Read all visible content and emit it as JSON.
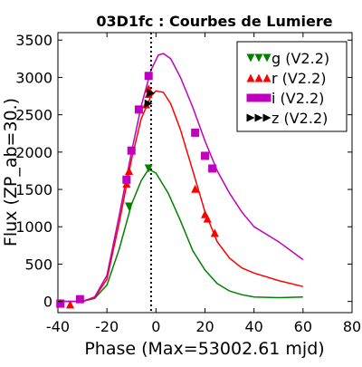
{
  "chart_data": {
    "type": "scatter",
    "title": "03D1fc : Courbes de Lumiere",
    "xlabel": "Phase (Max=53002.61 mjd)",
    "ylabel": "Flux (ZP_ab=30.)",
    "xlim": [
      -40,
      80
    ],
    "ylim": [
      -150,
      3600
    ],
    "xticks": [
      -40,
      -20,
      0,
      20,
      40,
      60,
      80
    ],
    "yticks": [
      0,
      500,
      1000,
      1500,
      2000,
      2500,
      3000,
      3500
    ],
    "grid": false,
    "legend_position": "top-right",
    "vertical_line": {
      "x": -2,
      "style": "dotted"
    },
    "series": [
      {
        "name": "g (V2.2)",
        "color": "#008000",
        "marker": "triangle-down",
        "points": [
          [
            -39,
            -30
          ],
          [
            -11,
            1270
          ],
          [
            -3,
            1780
          ]
        ],
        "model": [
          [
            -40,
            0
          ],
          [
            -30,
            0
          ],
          [
            -25,
            40
          ],
          [
            -20,
            220
          ],
          [
            -15,
            700
          ],
          [
            -10,
            1300
          ],
          [
            -6,
            1620
          ],
          [
            -3,
            1770
          ],
          [
            0,
            1720
          ],
          [
            5,
            1450
          ],
          [
            10,
            1080
          ],
          [
            15,
            680
          ],
          [
            20,
            420
          ],
          [
            25,
            240
          ],
          [
            30,
            140
          ],
          [
            35,
            90
          ],
          [
            40,
            60
          ],
          [
            50,
            50
          ],
          [
            60,
            60
          ]
        ]
      },
      {
        "name": "r (V2.2)",
        "color": "#ff0000",
        "marker": "triangle-up",
        "points": [
          [
            -39,
            -20
          ],
          [
            -35,
            -40
          ],
          [
            -12,
            1580
          ],
          [
            -11,
            1750
          ],
          [
            -4,
            2640
          ],
          [
            -3,
            2780
          ],
          [
            -3,
            2850
          ],
          [
            16,
            1510
          ],
          [
            20,
            1170
          ],
          [
            21,
            1110
          ],
          [
            24,
            920
          ]
        ],
        "model": [
          [
            -40,
            0
          ],
          [
            -30,
            0
          ],
          [
            -25,
            50
          ],
          [
            -20,
            300
          ],
          [
            -15,
            1050
          ],
          [
            -10,
            1900
          ],
          [
            -6,
            2450
          ],
          [
            -2,
            2750
          ],
          [
            0,
            2820
          ],
          [
            3,
            2800
          ],
          [
            6,
            2650
          ],
          [
            10,
            2300
          ],
          [
            15,
            1750
          ],
          [
            20,
            1200
          ],
          [
            25,
            800
          ],
          [
            30,
            580
          ],
          [
            35,
            450
          ],
          [
            40,
            380
          ],
          [
            50,
            280
          ],
          [
            60,
            200
          ]
        ]
      },
      {
        "name": "i (V2.2)",
        "color": "#bf00bf",
        "marker": "square",
        "points": [
          [
            -39,
            -30
          ],
          [
            -31,
            30
          ],
          [
            -12,
            1630
          ],
          [
            -10,
            2020
          ],
          [
            -7,
            2570
          ],
          [
            -3,
            3020
          ],
          [
            16,
            2260
          ],
          [
            20,
            1950
          ],
          [
            23,
            1780
          ]
        ],
        "model": [
          [
            -40,
            0
          ],
          [
            -30,
            0
          ],
          [
            -25,
            60
          ],
          [
            -20,
            350
          ],
          [
            -15,
            1150
          ],
          [
            -10,
            2000
          ],
          [
            -6,
            2620
          ],
          [
            -2,
            3100
          ],
          [
            1,
            3300
          ],
          [
            3,
            3320
          ],
          [
            6,
            3250
          ],
          [
            10,
            3000
          ],
          [
            15,
            2600
          ],
          [
            20,
            2150
          ],
          [
            25,
            1750
          ],
          [
            30,
            1450
          ],
          [
            35,
            1200
          ],
          [
            40,
            1000
          ],
          [
            50,
            800
          ],
          [
            60,
            560
          ]
        ]
      },
      {
        "name": "z (V2.2)",
        "color": "#000000",
        "marker": "triangle-right",
        "points": [
          [
            -3,
            2650
          ],
          [
            -2,
            2790
          ]
        ]
      }
    ]
  }
}
